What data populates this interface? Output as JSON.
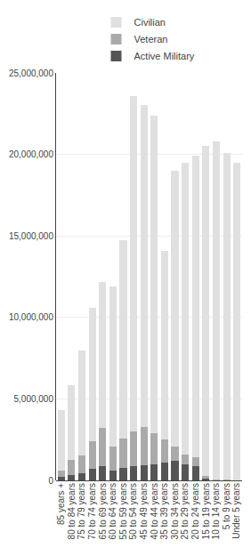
{
  "chart_data": {
    "type": "bar",
    "stacked": true,
    "categories": [
      "85 years +",
      "80 to 84 years",
      "75 to 79 years",
      "70 to 74 years",
      "65 to 69 years",
      "60 to 64 years",
      "55 to 59 years",
      "50 to 54 years",
      "45 to 49 years",
      "40 to 44 years",
      "35 to 39 years",
      "30 to 34 years",
      "25 to 29 years",
      "20 to 24 years",
      "15 to 19 years",
      "10 to 14 years",
      "5 to 9 years",
      "Under 5 years"
    ],
    "series": [
      {
        "name": "Active Military",
        "color": "#555555",
        "values": [
          200000,
          350000,
          450000,
          700000,
          900000,
          600000,
          750000,
          900000,
          950000,
          1000000,
          1100000,
          1200000,
          1000000,
          900000,
          150000,
          50000,
          20000,
          10000
        ]
      },
      {
        "name": "Veteran",
        "color": "#aaaaaa",
        "values": [
          400000,
          900000,
          1100000,
          1700000,
          2300000,
          1500000,
          1800000,
          2100000,
          2300000,
          1900000,
          1400000,
          900000,
          600000,
          500000,
          100000,
          30000,
          10000,
          5000
        ]
      },
      {
        "name": "Civilian",
        "color": "#e0e0e0",
        "values": [
          3700000,
          4600000,
          6400000,
          8200000,
          9000000,
          9800000,
          12200000,
          20600000,
          19800000,
          19500000,
          11600000,
          16900000,
          17900000,
          18500000,
          20300000,
          20700000,
          20050000,
          19450000
        ]
      }
    ],
    "ylim": [
      0,
      25000000
    ],
    "yticks": [
      0,
      {
        "value": 5000000,
        "label": "5,000,000"
      },
      {
        "value": 10000000,
        "label": "10,000,000"
      },
      {
        "value": 15000000,
        "label": "15,000,000"
      },
      {
        "value": 20000000,
        "label": "20,000,000"
      },
      {
        "value": 25000000,
        "label": "25,000,000"
      }
    ],
    "grid": true,
    "legend": "top"
  }
}
